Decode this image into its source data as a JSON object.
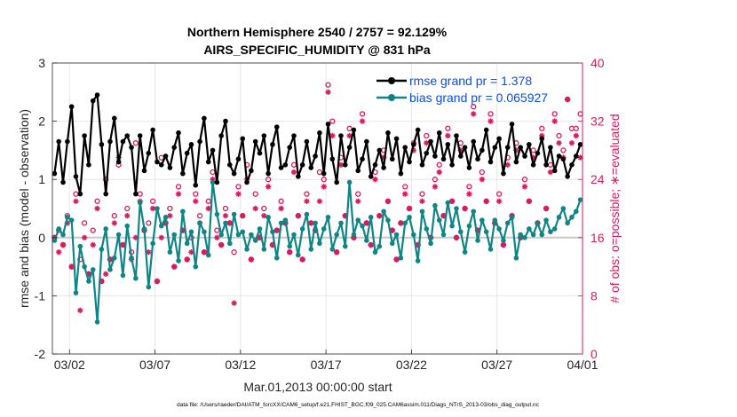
{
  "chart_data": {
    "type": "line",
    "title": "Northern Hemisphere 2540 / 2757 = 92.129%",
    "subtitle": "AIRS_SPECIFIC_HUMIDITY @ 831 hPa",
    "xlabel": "Mar.01,2013 00:00:00 start",
    "ylabel_left": "rmse and bias (model - observation)",
    "ylabel_right": "# of obs: o=possible; ∗=evaluated",
    "xlim": [
      0,
      31
    ],
    "ylim_left": [
      -2,
      3
    ],
    "ylim_right": [
      0,
      40
    ],
    "x_ticks": [
      1,
      6,
      11,
      16,
      21,
      26,
      31
    ],
    "x_tick_labels": [
      "03/02",
      "03/07",
      "03/12",
      "03/17",
      "03/22",
      "03/27",
      "04/01"
    ],
    "y_ticks_left": [
      -2,
      -1,
      0,
      1,
      2,
      3
    ],
    "y_ticks_right": [
      0,
      8,
      16,
      24,
      32,
      40
    ],
    "grid": true,
    "legend_position": "top-right",
    "colors": {
      "rmse": "#000000",
      "bias": "#0f8585",
      "obs": "#d81b60",
      "zero": "#c8c8c8",
      "legend_text": "#0a4fe0"
    },
    "footnote": "data file: /Users/raeder/DAI/ATM_forcXX/CAM6_setup/f.e21.FHIST_BGC.f09_025.CAM6assim.011/Diags_NTrS_2013-03/obs_diag_output.nc",
    "series": [
      {
        "name": "rmse grand pr = 1.378",
        "key": "rmse",
        "axis": "left",
        "x": [
          0.125,
          0.375,
          0.625,
          0.875,
          1.125,
          1.375,
          1.625,
          1.875,
          2.125,
          2.375,
          2.625,
          2.875,
          3.125,
          3.375,
          3.625,
          3.875,
          4.125,
          4.375,
          4.625,
          4.875,
          5.125,
          5.375,
          5.625,
          5.875,
          6.125,
          6.375,
          6.625,
          6.875,
          7.125,
          7.375,
          7.625,
          7.875,
          8.125,
          8.375,
          8.625,
          8.875,
          9.125,
          9.375,
          9.625,
          9.875,
          10.125,
          10.375,
          10.625,
          10.875,
          11.125,
          11.375,
          11.625,
          11.875,
          12.125,
          12.375,
          12.625,
          12.875,
          13.125,
          13.375,
          13.625,
          13.875,
          14.125,
          14.375,
          14.625,
          14.875,
          15.125,
          15.375,
          15.625,
          15.875,
          16.125,
          16.375,
          16.625,
          16.875,
          17.125,
          17.375,
          17.625,
          17.875,
          18.125,
          18.375,
          18.625,
          18.875,
          19.125,
          19.375,
          19.625,
          19.875,
          20.125,
          20.375,
          20.625,
          20.875,
          21.125,
          21.375,
          21.625,
          21.875,
          22.125,
          22.375,
          22.625,
          22.875,
          23.125,
          23.375,
          23.625,
          23.875,
          24.125,
          24.375,
          24.625,
          24.875,
          25.125,
          25.375,
          25.625,
          25.875,
          26.125,
          26.375,
          26.625,
          26.875,
          27.125,
          27.375,
          27.625,
          27.875,
          28.125,
          28.375,
          28.625,
          28.875,
          29.125,
          29.375,
          29.625,
          29.875,
          30.125,
          30.375,
          30.625,
          30.875
        ],
        "values": [
          1.1,
          1.65,
          0.95,
          1.65,
          2.25,
          1.05,
          0.75,
          1.75,
          1.25,
          2.35,
          2.45,
          1.6,
          0.75,
          1.65,
          2.05,
          1.3,
          1.65,
          1.75,
          1.55,
          0.75,
          1.75,
          1.15,
          1.45,
          1.85,
          1.3,
          1.25,
          1.4,
          1.2,
          1.55,
          1.8,
          1.1,
          1.45,
          1.6,
          0.9,
          1.65,
          2.05,
          1.3,
          1.5,
          0.95,
          1.75,
          2.0,
          1.25,
          1.1,
          1.35,
          1.7,
          0.95,
          1.15,
          1.65,
          1.45,
          1.75,
          1.1,
          1.6,
          1.9,
          1.2,
          1.25,
          1.55,
          1.75,
          1.05,
          1.25,
          1.65,
          1.2,
          1.4,
          1.8,
          1.1,
          1.95,
          1.35,
          0.95,
          1.75,
          1.25,
          1.55,
          1.85,
          1.15,
          1.35,
          1.65,
          1.05,
          1.25,
          1.5,
          1.2,
          1.8,
          1.35,
          1.7,
          1.1,
          1.55,
          1.3,
          1.6,
          1.85,
          1.25,
          1.45,
          1.65,
          1.4,
          1.8,
          1.35,
          1.6,
          1.25,
          1.75,
          1.4,
          1.55,
          1.2,
          1.65,
          1.35,
          1.5,
          1.85,
          1.3,
          1.55,
          1.7,
          1.1,
          1.55,
          1.95,
          1.3,
          1.55,
          1.4,
          1.6,
          1.25,
          1.45,
          1.7,
          1.25,
          1.55,
          1.15,
          1.4,
          1.35,
          1.05,
          1.25,
          1.4,
          1.6
        ]
      },
      {
        "name": "bias grand pr = 0.065927",
        "key": "bias",
        "axis": "left",
        "x": [
          0.125,
          0.375,
          0.625,
          0.875,
          1.125,
          1.375,
          1.625,
          1.875,
          2.125,
          2.375,
          2.625,
          2.875,
          3.125,
          3.375,
          3.625,
          3.875,
          4.125,
          4.375,
          4.625,
          4.875,
          5.125,
          5.375,
          5.625,
          5.875,
          6.125,
          6.375,
          6.625,
          6.875,
          7.125,
          7.375,
          7.625,
          7.875,
          8.125,
          8.375,
          8.625,
          8.875,
          9.125,
          9.375,
          9.625,
          9.875,
          10.125,
          10.375,
          10.625,
          10.875,
          11.125,
          11.375,
          11.625,
          11.875,
          12.125,
          12.375,
          12.625,
          12.875,
          13.125,
          13.375,
          13.625,
          13.875,
          14.125,
          14.375,
          14.625,
          14.875,
          15.125,
          15.375,
          15.625,
          15.875,
          16.125,
          16.375,
          16.625,
          16.875,
          17.125,
          17.375,
          17.625,
          17.875,
          18.125,
          18.375,
          18.625,
          18.875,
          19.125,
          19.375,
          19.625,
          19.875,
          20.125,
          20.375,
          20.625,
          20.875,
          21.125,
          21.375,
          21.625,
          21.875,
          22.125,
          22.375,
          22.625,
          22.875,
          23.125,
          23.375,
          23.625,
          23.875,
          24.125,
          24.375,
          24.625,
          24.875,
          25.125,
          25.375,
          25.625,
          25.875,
          26.125,
          26.375,
          26.625,
          26.875,
          27.125,
          27.375,
          27.625,
          27.875,
          28.125,
          28.375,
          28.625,
          28.875,
          29.125,
          29.375,
          29.625,
          29.875,
          30.125,
          30.375,
          30.625,
          30.875
        ],
        "values": [
          -0.05,
          0.15,
          0.05,
          0.35,
          0.3,
          -0.95,
          -0.15,
          -0.5,
          -0.75,
          -0.55,
          -1.45,
          -0.2,
          0.15,
          -0.55,
          -0.35,
          0.05,
          -0.65,
          0.2,
          -0.35,
          -0.7,
          0.6,
          0.15,
          -0.85,
          -0.1,
          0.5,
          0.2,
          0.35,
          -0.25,
          0.05,
          -0.4,
          0.45,
          -0.1,
          0.1,
          -0.5,
          0.25,
          0.1,
          -0.3,
          0.95,
          0.4,
          0.05,
          0.25,
          -0.1,
          0.4,
          0.05,
          0.1,
          -0.2,
          0.05,
          -0.05,
          0.15,
          -0.2,
          0.35,
          0.1,
          -0.35,
          0.25,
          0.3,
          -0.15,
          0.05,
          -0.3,
          0.15,
          0.4,
          -0.2,
          0.25,
          -0.1,
          0.15,
          0.35,
          -0.2,
          0.05,
          0.25,
          -0.15,
          0.95,
          0.05,
          0.3,
          0.2,
          -0.05,
          0.35,
          -0.25,
          -0.15,
          0.45,
          0.3,
          -0.1,
          0.05,
          -0.35,
          0.25,
          0.35,
          0.05,
          -0.4,
          0.45,
          0.15,
          -0.1,
          0.55,
          0.3,
          0.05,
          0.6,
          0.2,
          0.5,
          0.1,
          -0.25,
          0.2,
          0.45,
          -0.05,
          0.3,
          0.1,
          -0.2,
          0.3,
          0.15,
          -0.05,
          0.25,
          0.35,
          -0.35,
          0.05,
          0.0,
          0.15,
          0.05,
          0.25,
          0.05,
          0.3,
          0.1,
          0.15,
          0.35,
          0.5,
          0.25,
          0.35,
          0.45,
          0.65
        ]
      },
      {
        "name": "possible",
        "key": "obs_possible",
        "axis": "right",
        "marker": "circle",
        "x": [
          0.125,
          0.375,
          0.625,
          0.875,
          1.125,
          1.375,
          1.625,
          1.875,
          2.125,
          2.375,
          2.625,
          2.875,
          3.125,
          3.375,
          3.625,
          3.875,
          4.125,
          4.375,
          4.625,
          4.875,
          5.125,
          5.375,
          5.625,
          5.875,
          6.125,
          6.375,
          6.625,
          6.875,
          7.125,
          7.375,
          7.625,
          7.875,
          8.125,
          8.375,
          8.625,
          8.875,
          9.125,
          9.375,
          9.625,
          9.875,
          10.125,
          10.375,
          10.625,
          10.875,
          11.125,
          11.375,
          11.625,
          11.875,
          12.125,
          12.375,
          12.625,
          12.875,
          13.125,
          13.375,
          13.625,
          13.875,
          14.125,
          14.375,
          14.625,
          14.875,
          15.125,
          15.375,
          15.625,
          15.875,
          16.125,
          16.375,
          16.625,
          16.875,
          17.125,
          17.375,
          17.625,
          17.875,
          18.125,
          18.375,
          18.625,
          18.875,
          19.125,
          19.375,
          19.625,
          19.875,
          20.125,
          20.375,
          20.625,
          20.875,
          21.125,
          21.375,
          21.625,
          21.875,
          22.125,
          22.375,
          22.625,
          22.875,
          23.125,
          23.375,
          23.625,
          23.875,
          24.125,
          24.375,
          24.625,
          24.875,
          25.125,
          25.375,
          25.625,
          25.875,
          26.125,
          26.375,
          26.625,
          26.875,
          27.125,
          27.375,
          27.625,
          27.875,
          28.125,
          28.375,
          28.625,
          28.875,
          29.125,
          29.375,
          29.625,
          29.875,
          30.125,
          30.375,
          30.625,
          30.875
        ],
        "values": [
          16,
          17,
          15,
          19,
          12,
          22,
          13,
          18,
          11,
          17,
          21,
          10,
          24,
          13,
          19,
          26,
          15,
          20,
          14,
          29,
          22,
          17,
          18,
          21,
          10,
          27,
          18,
          20,
          12,
          23,
          17,
          13,
          16,
          22,
          19,
          14,
          21,
          25,
          17,
          15,
          20,
          18,
          14,
          23,
          19,
          26,
          13,
          22,
          16,
          20,
          24,
          15,
          17,
          21,
          18,
          14,
          26,
          19,
          13,
          22,
          18,
          17,
          25,
          24,
          37,
          32,
          14,
          27,
          19,
          31,
          16,
          22,
          33,
          18,
          15,
          25,
          19,
          28,
          21,
          17,
          13,
          18,
          23,
          20,
          29,
          15,
          22,
          30,
          16,
          24,
          26,
          19,
          31,
          21,
          16,
          29,
          20,
          23,
          34,
          17,
          25,
          21,
          33,
          18,
          22,
          15,
          27,
          19,
          29,
          16,
          24,
          21,
          28,
          18,
          31,
          20,
          26,
          33,
          30,
          28,
          35,
          31,
          31,
          33
        ]
      },
      {
        "name": "evaluated",
        "key": "obs_evaluated",
        "axis": "right",
        "marker": "star",
        "x": [
          0.125,
          0.375,
          0.625,
          0.875,
          1.125,
          1.375,
          1.625,
          1.875,
          2.125,
          2.375,
          2.625,
          2.875,
          3.125,
          3.375,
          3.625,
          3.875,
          4.125,
          4.375,
          4.625,
          4.875,
          5.125,
          5.375,
          5.625,
          5.875,
          6.125,
          6.375,
          6.625,
          6.875,
          7.125,
          7.375,
          7.625,
          7.875,
          8.125,
          8.375,
          8.625,
          8.875,
          9.125,
          9.375,
          9.625,
          9.875,
          10.125,
          10.375,
          10.625,
          10.875,
          11.125,
          11.375,
          11.625,
          11.875,
          12.125,
          12.375,
          12.625,
          12.875,
          13.125,
          13.375,
          13.625,
          13.875,
          14.125,
          14.375,
          14.625,
          14.875,
          15.125,
          15.375,
          15.625,
          15.875,
          16.125,
          16.375,
          16.625,
          16.875,
          17.125,
          17.375,
          17.625,
          17.875,
          18.125,
          18.375,
          18.625,
          18.875,
          19.125,
          19.375,
          19.625,
          19.875,
          20.125,
          20.375,
          20.625,
          20.875,
          21.125,
          21.375,
          21.625,
          21.875,
          22.125,
          22.375,
          22.625,
          22.875,
          23.125,
          23.375,
          23.625,
          23.875,
          24.125,
          24.375,
          24.625,
          24.875,
          25.125,
          25.375,
          25.625,
          25.875,
          26.125,
          26.375,
          26.625,
          26.875,
          27.125,
          27.375,
          27.625,
          27.875,
          28.125,
          28.375,
          28.625,
          28.875,
          29.125,
          29.375,
          29.625,
          29.875,
          30.125,
          30.375,
          30.625,
          30.875
        ],
        "values": [
          16,
          14,
          15,
          18,
          12,
          21,
          6,
          16,
          11,
          15,
          20,
          10,
          11,
          13,
          18,
          27,
          15,
          19,
          13,
          16,
          21,
          17,
          14,
          20,
          10,
          16,
          18,
          19,
          12,
          22,
          17,
          13,
          14,
          21,
          18,
          14,
          20,
          24,
          16,
          15,
          19,
          18,
          7,
          22,
          19,
          24,
          13,
          20,
          16,
          19,
          23,
          15,
          17,
          20,
          18,
          14,
          25,
          19,
          13,
          21,
          18,
          17,
          21,
          23,
          36,
          30,
          14,
          26,
          19,
          30,
          16,
          21,
          32,
          18,
          15,
          24,
          19,
          27,
          21,
          17,
          13,
          18,
          22,
          20,
          28,
          15,
          21,
          29,
          16,
          23,
          25,
          19,
          30,
          21,
          16,
          28,
          20,
          22,
          33,
          17,
          24,
          21,
          32,
          18,
          21,
          15,
          26,
          19,
          28,
          16,
          23,
          21,
          27,
          18,
          30,
          20,
          25,
          32,
          29,
          27,
          35,
          29,
          30,
          27
        ]
      }
    ]
  }
}
